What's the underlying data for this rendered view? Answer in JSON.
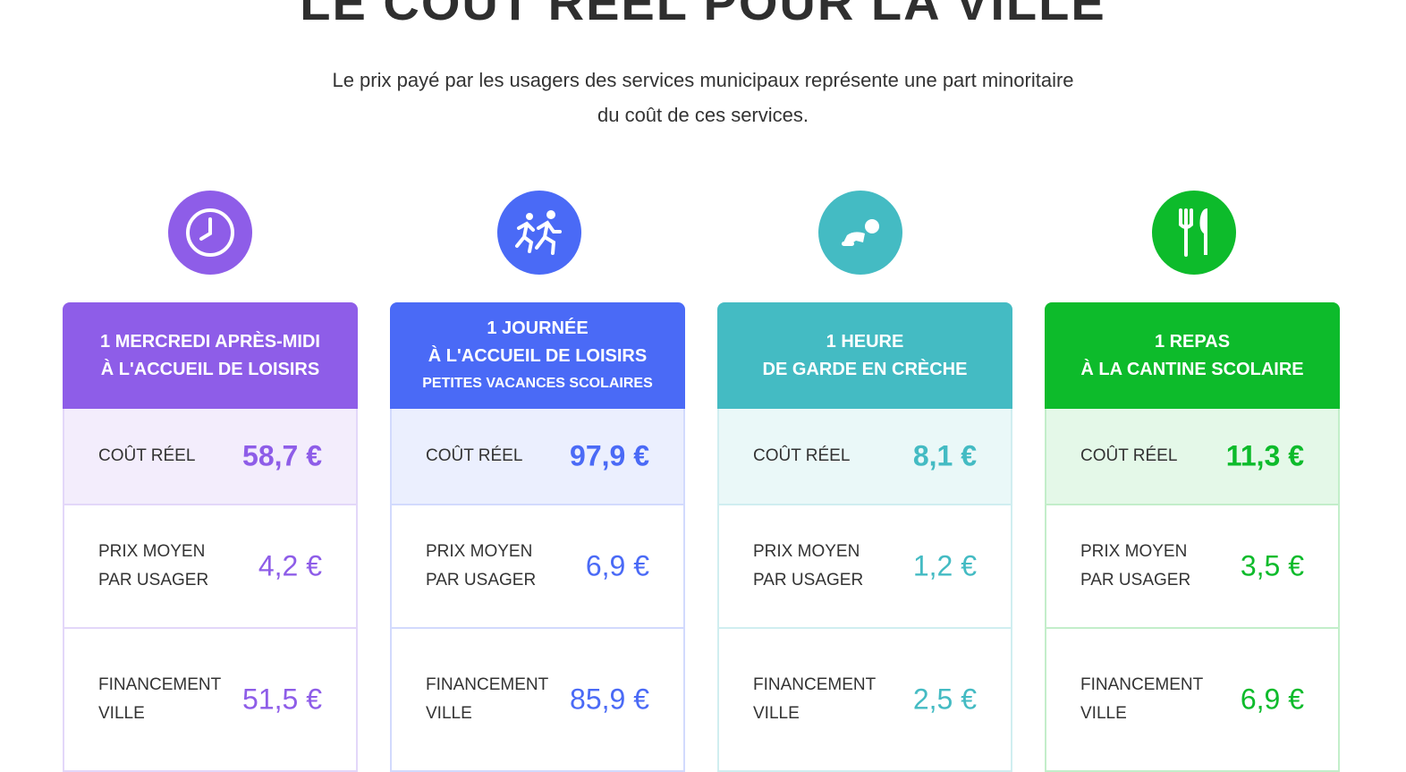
{
  "header": {
    "title": "LE COÛT RÉEL POUR LA VILLE",
    "intro": [
      "Le prix payé par les usagers des services municipaux représente une part minoritaire",
      "du coût de ces services."
    ]
  },
  "cards": [
    {
      "color": "#8e5de8",
      "title": [
        "1 MERCREDI APRÈS-MIDI",
        "À L'ACCUEIL DE LOISIRS"
      ],
      "rows": [
        {
          "label": [
            "COÛT RÉEL"
          ],
          "value": "58,7 €"
        },
        {
          "label": [
            "PRIX MOYEN",
            "PAR USAGER"
          ],
          "value": "4,2 €"
        },
        {
          "label": [
            "FINANCEMENT",
            "VILLE"
          ],
          "value": "51,5 €"
        }
      ]
    },
    {
      "color": "#4a6af6",
      "title": [
        "1 JOURNÉE",
        "À L'ACCUEIL DE LOISIRS"
      ],
      "note": "PETITES VACANCES SCOLAIRES",
      "rows": [
        {
          "label": [
            "COÛT RÉEL"
          ],
          "value": "97,9 €"
        },
        {
          "label": [
            "PRIX MOYEN",
            "PAR USAGER"
          ],
          "value": "6,9 €"
        },
        {
          "label": [
            "FINANCEMENT",
            "VILLE"
          ],
          "value": "85,9 €"
        }
      ]
    },
    {
      "color": "#44bbc3",
      "title": [
        "1 HEURE",
        "DE GARDE EN CRÈCHE"
      ],
      "rows": [
        {
          "label": [
            "COÛT RÉEL"
          ],
          "value": "8,1 €"
        },
        {
          "label": [
            "PRIX MOYEN",
            "PAR USAGER"
          ],
          "value": "1,2 €"
        },
        {
          "label": [
            "FINANCEMENT",
            "VILLE"
          ],
          "value": "2,5 €"
        }
      ]
    },
    {
      "color": "#0dbb2b",
      "title": [
        "1 REPAS",
        "À LA CANTINE SCOLAIRE"
      ],
      "rows": [
        {
          "label": [
            "COÛT RÉEL"
          ],
          "value": "11,3 €"
        },
        {
          "label": [
            "PRIX MOYEN",
            "PAR USAGER"
          ],
          "value": "3,5 €"
        },
        {
          "label": [
            "FINANCEMENT",
            "VILLE"
          ],
          "value": "6,9 €"
        }
      ]
    }
  ]
}
